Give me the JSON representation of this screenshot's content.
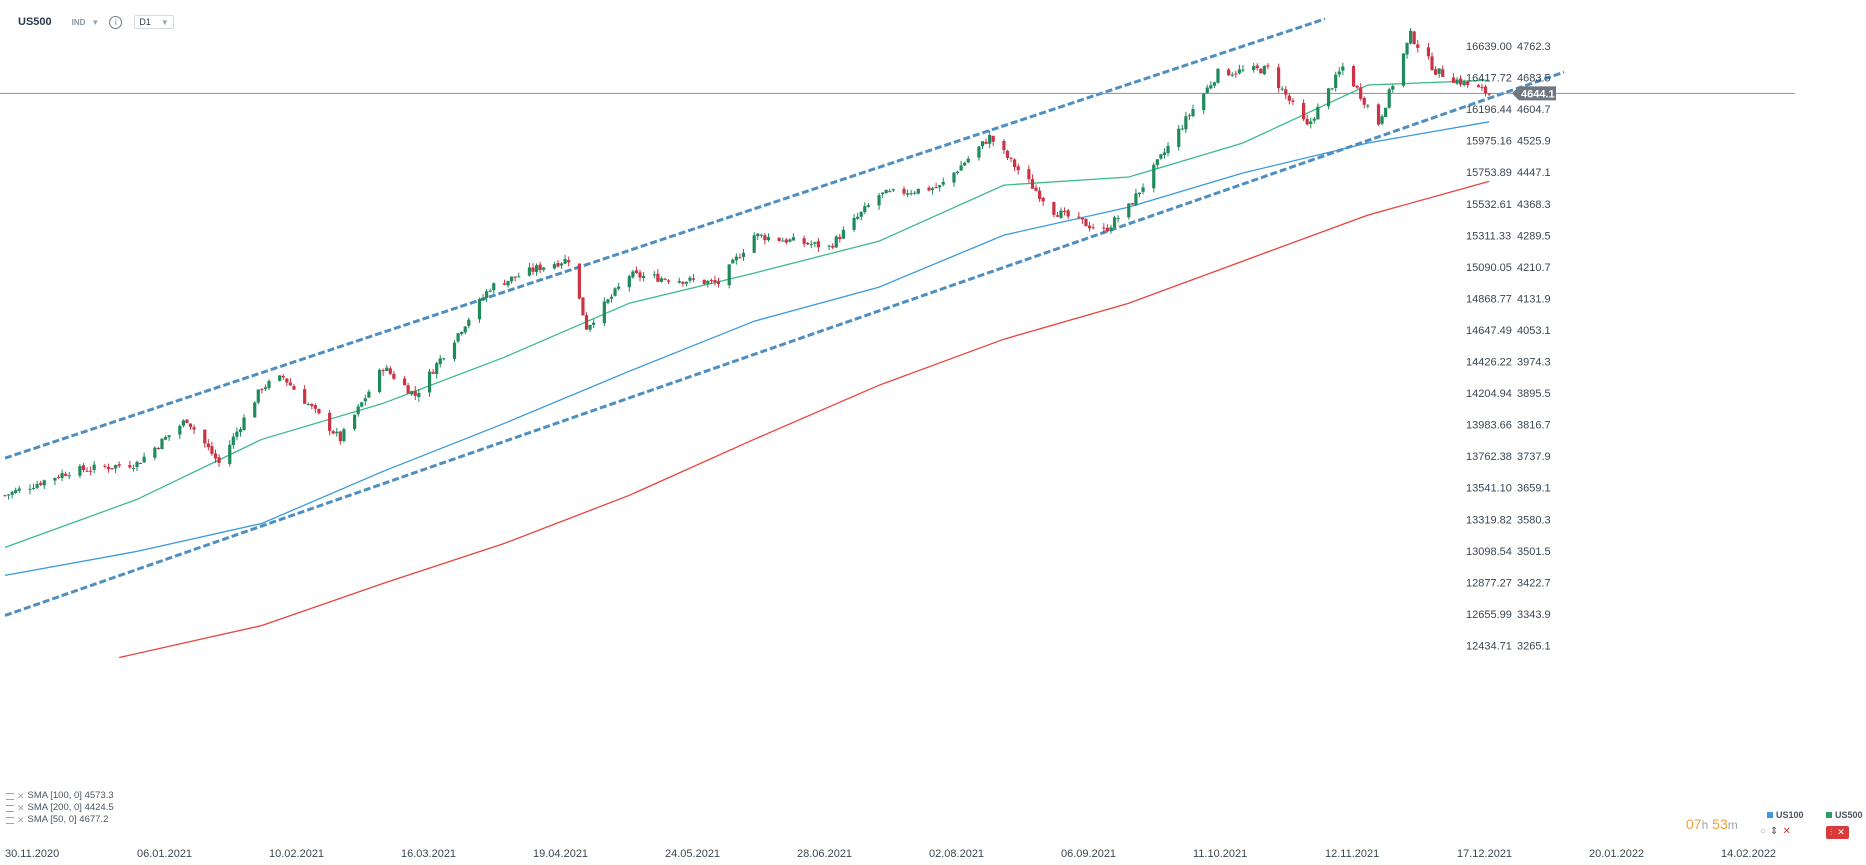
{
  "header": {
    "symbol": "US500",
    "market": "IND",
    "timeframe": "D1"
  },
  "indicators": [
    {
      "label": "SMA [100, 0] 4573.3"
    },
    {
      "label": "SMA [200, 0] 4424.5"
    },
    {
      "label": "SMA [50, 0] 4677.2"
    }
  ],
  "footer": {
    "countdown_hours": "07",
    "countdown_h_unit": "h",
    "countdown_minutes": "53",
    "countdown_m_unit": "m",
    "instruments": [
      {
        "label": "US100",
        "color": "#3a9ad9"
      },
      {
        "label": "US500",
        "color": "#2a9d68"
      }
    ]
  },
  "colors": {
    "up_candle": "#1f8a5b",
    "down_candle": "#cc3344",
    "sma50": "#3dbb86",
    "sma100": "#3a9ad9",
    "sma200": "#e8433b",
    "trend_channel": "#4f8fc0",
    "price_tag_bg": "#6f7780"
  },
  "chart_data": {
    "type": "candlestick",
    "instrument": "US500",
    "timeframe": "D1",
    "current_price": "4644.1",
    "x_tick_labels": [
      "30.11.2020",
      "06.01.2021",
      "10.02.2021",
      "16.03.2021",
      "19.04.2021",
      "24.05.2021",
      "28.06.2021",
      "02.08.2021",
      "06.09.2021",
      "11.10.2021",
      "12.11.2021",
      "17.12.2021",
      "20.01.2022",
      "14.02.2022"
    ],
    "y_ticks_left": [
      "16639.00",
      "16417.72",
      "16196.44",
      "15975.16",
      "15753.89",
      "15532.61",
      "15311.33",
      "15090.05",
      "14868.77",
      "14647.49",
      "14426.22",
      "14204.94",
      "13983.66",
      "13762.38",
      "13541.10",
      "13319.82",
      "13098.54",
      "12877.27",
      "12655.99",
      "12434.71"
    ],
    "y_ticks_right": [
      "4762.3",
      "4683.5",
      "4604.7",
      "4525.9",
      "4447.1",
      "4368.3",
      "4289.5",
      "4210.7",
      "4131.9",
      "4053.1",
      "3974.3",
      "3895.5",
      "3816.7",
      "3737.9",
      "3659.1",
      "3580.3",
      "3501.5",
      "3422.7",
      "3343.9",
      "3265.1"
    ],
    "ylim": [
      3230,
      4800
    ],
    "price_keypoints": [
      {
        "date": "2020-11-30",
        "close": 3640
      },
      {
        "date": "2020-12-18",
        "close": 3700
      },
      {
        "date": "2021-01-06",
        "close": 3720
      },
      {
        "date": "2021-01-20",
        "close": 3830
      },
      {
        "date": "2021-01-29",
        "close": 3720
      },
      {
        "date": "2021-02-10",
        "close": 3910
      },
      {
        "date": "2021-02-16",
        "close": 3935
      },
      {
        "date": "2021-03-04",
        "close": 3780
      },
      {
        "date": "2021-03-16",
        "close": 3960
      },
      {
        "date": "2021-03-25",
        "close": 3890
      },
      {
        "date": "2021-04-15",
        "close": 4160
      },
      {
        "date": "2021-04-29",
        "close": 4210
      },
      {
        "date": "2021-05-07",
        "close": 4230
      },
      {
        "date": "2021-05-12",
        "close": 4060
      },
      {
        "date": "2021-05-24",
        "close": 4190
      },
      {
        "date": "2021-06-18",
        "close": 4170
      },
      {
        "date": "2021-06-28",
        "close": 4290
      },
      {
        "date": "2021-07-19",
        "close": 4260
      },
      {
        "date": "2021-08-02",
        "close": 4390
      },
      {
        "date": "2021-08-19",
        "close": 4410
      },
      {
        "date": "2021-09-02",
        "close": 4535
      },
      {
        "date": "2021-09-20",
        "close": 4350
      },
      {
        "date": "2021-10-04",
        "close": 4300
      },
      {
        "date": "2021-10-11",
        "close": 4360
      },
      {
        "date": "2021-10-29",
        "close": 4605
      },
      {
        "date": "2021-11-05",
        "close": 4695
      },
      {
        "date": "2021-11-19",
        "close": 4705
      },
      {
        "date": "2021-11-30",
        "close": 4560
      },
      {
        "date": "2021-12-10",
        "close": 4710
      },
      {
        "date": "2021-12-20",
        "close": 4570
      },
      {
        "date": "2021-12-29",
        "close": 4790
      },
      {
        "date": "2022-01-05",
        "close": 4700
      },
      {
        "date": "2022-01-14",
        "close": 4665
      },
      {
        "date": "2022-01-20",
        "close": 4644
      }
    ],
    "series": [
      {
        "name": "SMA [50, 0]",
        "last_value": 4677.2,
        "points": [
          [
            "2020-11-30",
            3510
          ],
          [
            "2021-01-06",
            3630
          ],
          [
            "2021-02-10",
            3780
          ],
          [
            "2021-03-16",
            3870
          ],
          [
            "2021-04-19",
            3985
          ],
          [
            "2021-05-24",
            4120
          ],
          [
            "2021-06-28",
            4195
          ],
          [
            "2021-08-02",
            4275
          ],
          [
            "2021-09-06",
            4415
          ],
          [
            "2021-10-11",
            4435
          ],
          [
            "2021-11-12",
            4520
          ],
          [
            "2021-12-17",
            4665
          ],
          [
            "2022-01-20",
            4677
          ]
        ]
      },
      {
        "name": "SMA [100, 0]",
        "last_value": 4573.3,
        "points": [
          [
            "2020-11-30",
            3440
          ],
          [
            "2021-01-06",
            3500
          ],
          [
            "2021-02-10",
            3570
          ],
          [
            "2021-03-16",
            3700
          ],
          [
            "2021-04-19",
            3820
          ],
          [
            "2021-05-24",
            3950
          ],
          [
            "2021-06-28",
            4075
          ],
          [
            "2021-08-02",
            4160
          ],
          [
            "2021-09-06",
            4290
          ],
          [
            "2021-10-11",
            4360
          ],
          [
            "2021-11-12",
            4445
          ],
          [
            "2021-12-17",
            4520
          ],
          [
            "2022-01-20",
            4573
          ]
        ]
      },
      {
        "name": "SMA [200, 0]",
        "last_value": 4424.5,
        "points": [
          [
            "2021-01-01",
            3235
          ],
          [
            "2021-02-10",
            3315
          ],
          [
            "2021-03-16",
            3420
          ],
          [
            "2021-04-19",
            3520
          ],
          [
            "2021-05-24",
            3640
          ],
          [
            "2021-06-28",
            3780
          ],
          [
            "2021-08-02",
            3915
          ],
          [
            "2021-09-06",
            4030
          ],
          [
            "2021-10-11",
            4120
          ],
          [
            "2021-11-12",
            4225
          ],
          [
            "2021-12-17",
            4340
          ],
          [
            "2022-01-20",
            4424
          ]
        ]
      }
    ],
    "trend_channel": {
      "upper": [
        [
          "2020-11-30",
          3733
        ],
        [
          "2021-12-05",
          4830
        ]
      ],
      "lower": [
        [
          "2020-11-30",
          3340
        ],
        [
          "2022-02-10",
          4697
        ]
      ]
    },
    "horizontal_line": 4644.1,
    "grid": false,
    "legend": "bottom-left"
  }
}
